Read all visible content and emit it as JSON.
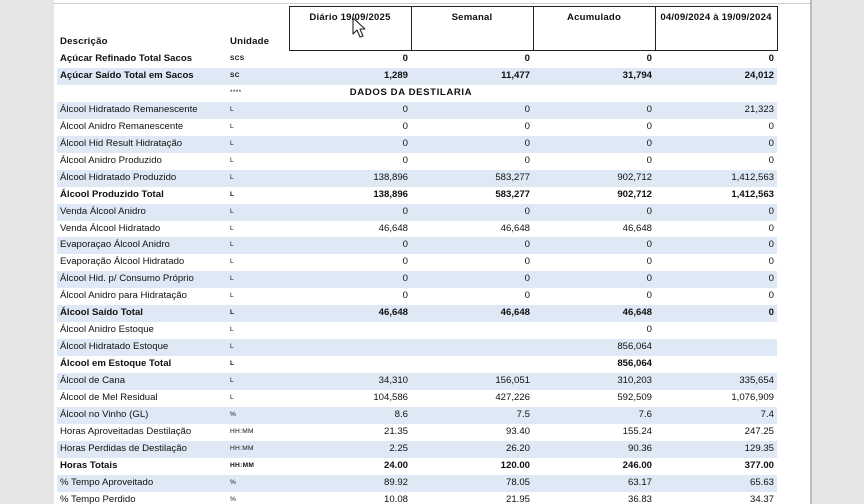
{
  "header": {
    "descricao": "Descrição",
    "unidade": "Unidade",
    "diario": "Diário 19/09/2025",
    "semanal": "Semanal",
    "acumulado": "Acumulado",
    "periodo": "04/09/2024 à 19/09/2024"
  },
  "rows": [
    {
      "label": "Açúcar Refinado Total Sacos",
      "unit": "SCS",
      "d": "0",
      "s": "0",
      "a": "0",
      "p": "0",
      "bold": true,
      "shade": false
    },
    {
      "label": "Açúcar Saído Total em Sacos",
      "unit": "SC",
      "d": "1,289",
      "s": "11,477",
      "a": "31,794",
      "p": "24,012",
      "bold": true,
      "shade": true
    },
    {
      "label": "",
      "unit": "****",
      "section": "DADOS DA DESTILARIA",
      "shade": false
    },
    {
      "label": "Álcool Hidratado Remanescente",
      "unit": "L",
      "d": "0",
      "s": "0",
      "a": "0",
      "p": "21,323",
      "bold": false,
      "shade": true
    },
    {
      "label": "Álcool Anidro Remanescente",
      "unit": "L",
      "d": "0",
      "s": "0",
      "a": "0",
      "p": "0",
      "bold": false,
      "shade": false
    },
    {
      "label": "Álcool Hid Result Hidratação",
      "unit": "L",
      "d": "0",
      "s": "0",
      "a": "0",
      "p": "0",
      "bold": false,
      "shade": true
    },
    {
      "label": "Álcool Anidro Produzido",
      "unit": "L",
      "d": "0",
      "s": "0",
      "a": "0",
      "p": "0",
      "bold": false,
      "shade": false
    },
    {
      "label": "Álcool Hidratado Produzido",
      "unit": "L",
      "d": "138,896",
      "s": "583,277",
      "a": "902,712",
      "p": "1,412,563",
      "bold": false,
      "shade": true
    },
    {
      "label": "Álcool Produzido Total",
      "unit": "L",
      "d": "138,896",
      "s": "583,277",
      "a": "902,712",
      "p": "1,412,563",
      "bold": true,
      "shade": false
    },
    {
      "label": "Venda Álcool Anidro",
      "unit": "L",
      "d": "0",
      "s": "0",
      "a": "0",
      "p": "0",
      "bold": false,
      "shade": true
    },
    {
      "label": "Venda Álcool Hidratado",
      "unit": "L",
      "d": "46,648",
      "s": "46,648",
      "a": "46,648",
      "p": "0",
      "bold": false,
      "shade": false
    },
    {
      "label": "Evaporaçao Álcool Anidro",
      "unit": "L",
      "d": "0",
      "s": "0",
      "a": "0",
      "p": "0",
      "bold": false,
      "shade": true
    },
    {
      "label": "Evaporação Álcool Hidratado",
      "unit": "L",
      "d": "0",
      "s": "0",
      "a": "0",
      "p": "0",
      "bold": false,
      "shade": false
    },
    {
      "label": "Álcool Hid. p/ Consumo Próprio",
      "unit": "L",
      "d": "0",
      "s": "0",
      "a": "0",
      "p": "0",
      "bold": false,
      "shade": true
    },
    {
      "label": "Álcool Anidro para Hidratação",
      "unit": "L",
      "d": "0",
      "s": "0",
      "a": "0",
      "p": "0",
      "bold": false,
      "shade": false
    },
    {
      "label": "Álcool Saído Total",
      "unit": "L",
      "d": "46,648",
      "s": "46,648",
      "a": "46,648",
      "p": "0",
      "bold": true,
      "shade": true
    },
    {
      "label": "Álcool Anidro Estoque",
      "unit": "L",
      "d": "",
      "s": "",
      "a": "0",
      "p": "",
      "bold": false,
      "shade": false
    },
    {
      "label": "Álcool Hidratado Estoque",
      "unit": "L",
      "d": "",
      "s": "",
      "a": "856,064",
      "p": "",
      "bold": false,
      "shade": true
    },
    {
      "label": "Álcool em Estoque Total",
      "unit": "L",
      "d": "",
      "s": "",
      "a": "856,064",
      "p": "",
      "bold": true,
      "shade": false
    },
    {
      "label": "Álcool de Cana",
      "unit": "L",
      "d": "34,310",
      "s": "156,051",
      "a": "310,203",
      "p": "335,654",
      "bold": false,
      "shade": true
    },
    {
      "label": "Álcool de Mel Residual",
      "unit": "L",
      "d": "104,586",
      "s": "427,226",
      "a": "592,509",
      "p": "1,076,909",
      "bold": false,
      "shade": false
    },
    {
      "label": "Álcool no Vinho (GL)",
      "unit": "%",
      "d": "8.6",
      "s": "7.5",
      "a": "7.6",
      "p": "7.4",
      "bold": false,
      "shade": true
    },
    {
      "label": "Horas Aproveitadas Destilação",
      "unit": "HH:MM",
      "d": "21.35",
      "s": "93.40",
      "a": "155.24",
      "p": "247.25",
      "bold": false,
      "shade": false
    },
    {
      "label": "Horas Perdidas de Destilação",
      "unit": "HH:MM",
      "d": "2.25",
      "s": "26.20",
      "a": "90.36",
      "p": "129.35",
      "bold": false,
      "shade": true
    },
    {
      "label": "Horas Totais",
      "unit": "HH:MM",
      "d": "24.00",
      "s": "120.00",
      "a": "246.00",
      "p": "377.00",
      "bold": true,
      "shade": false
    },
    {
      "label": "% Tempo Aproveitado",
      "unit": "%",
      "d": "89.92",
      "s": "78.05",
      "a": "63.17",
      "p": "65.63",
      "bold": false,
      "shade": true
    },
    {
      "label": "% Tempo Perdido",
      "unit": "%",
      "d": "10.08",
      "s": "21.95",
      "a": "36.83",
      "p": "34.37",
      "bold": false,
      "shade": false
    }
  ]
}
